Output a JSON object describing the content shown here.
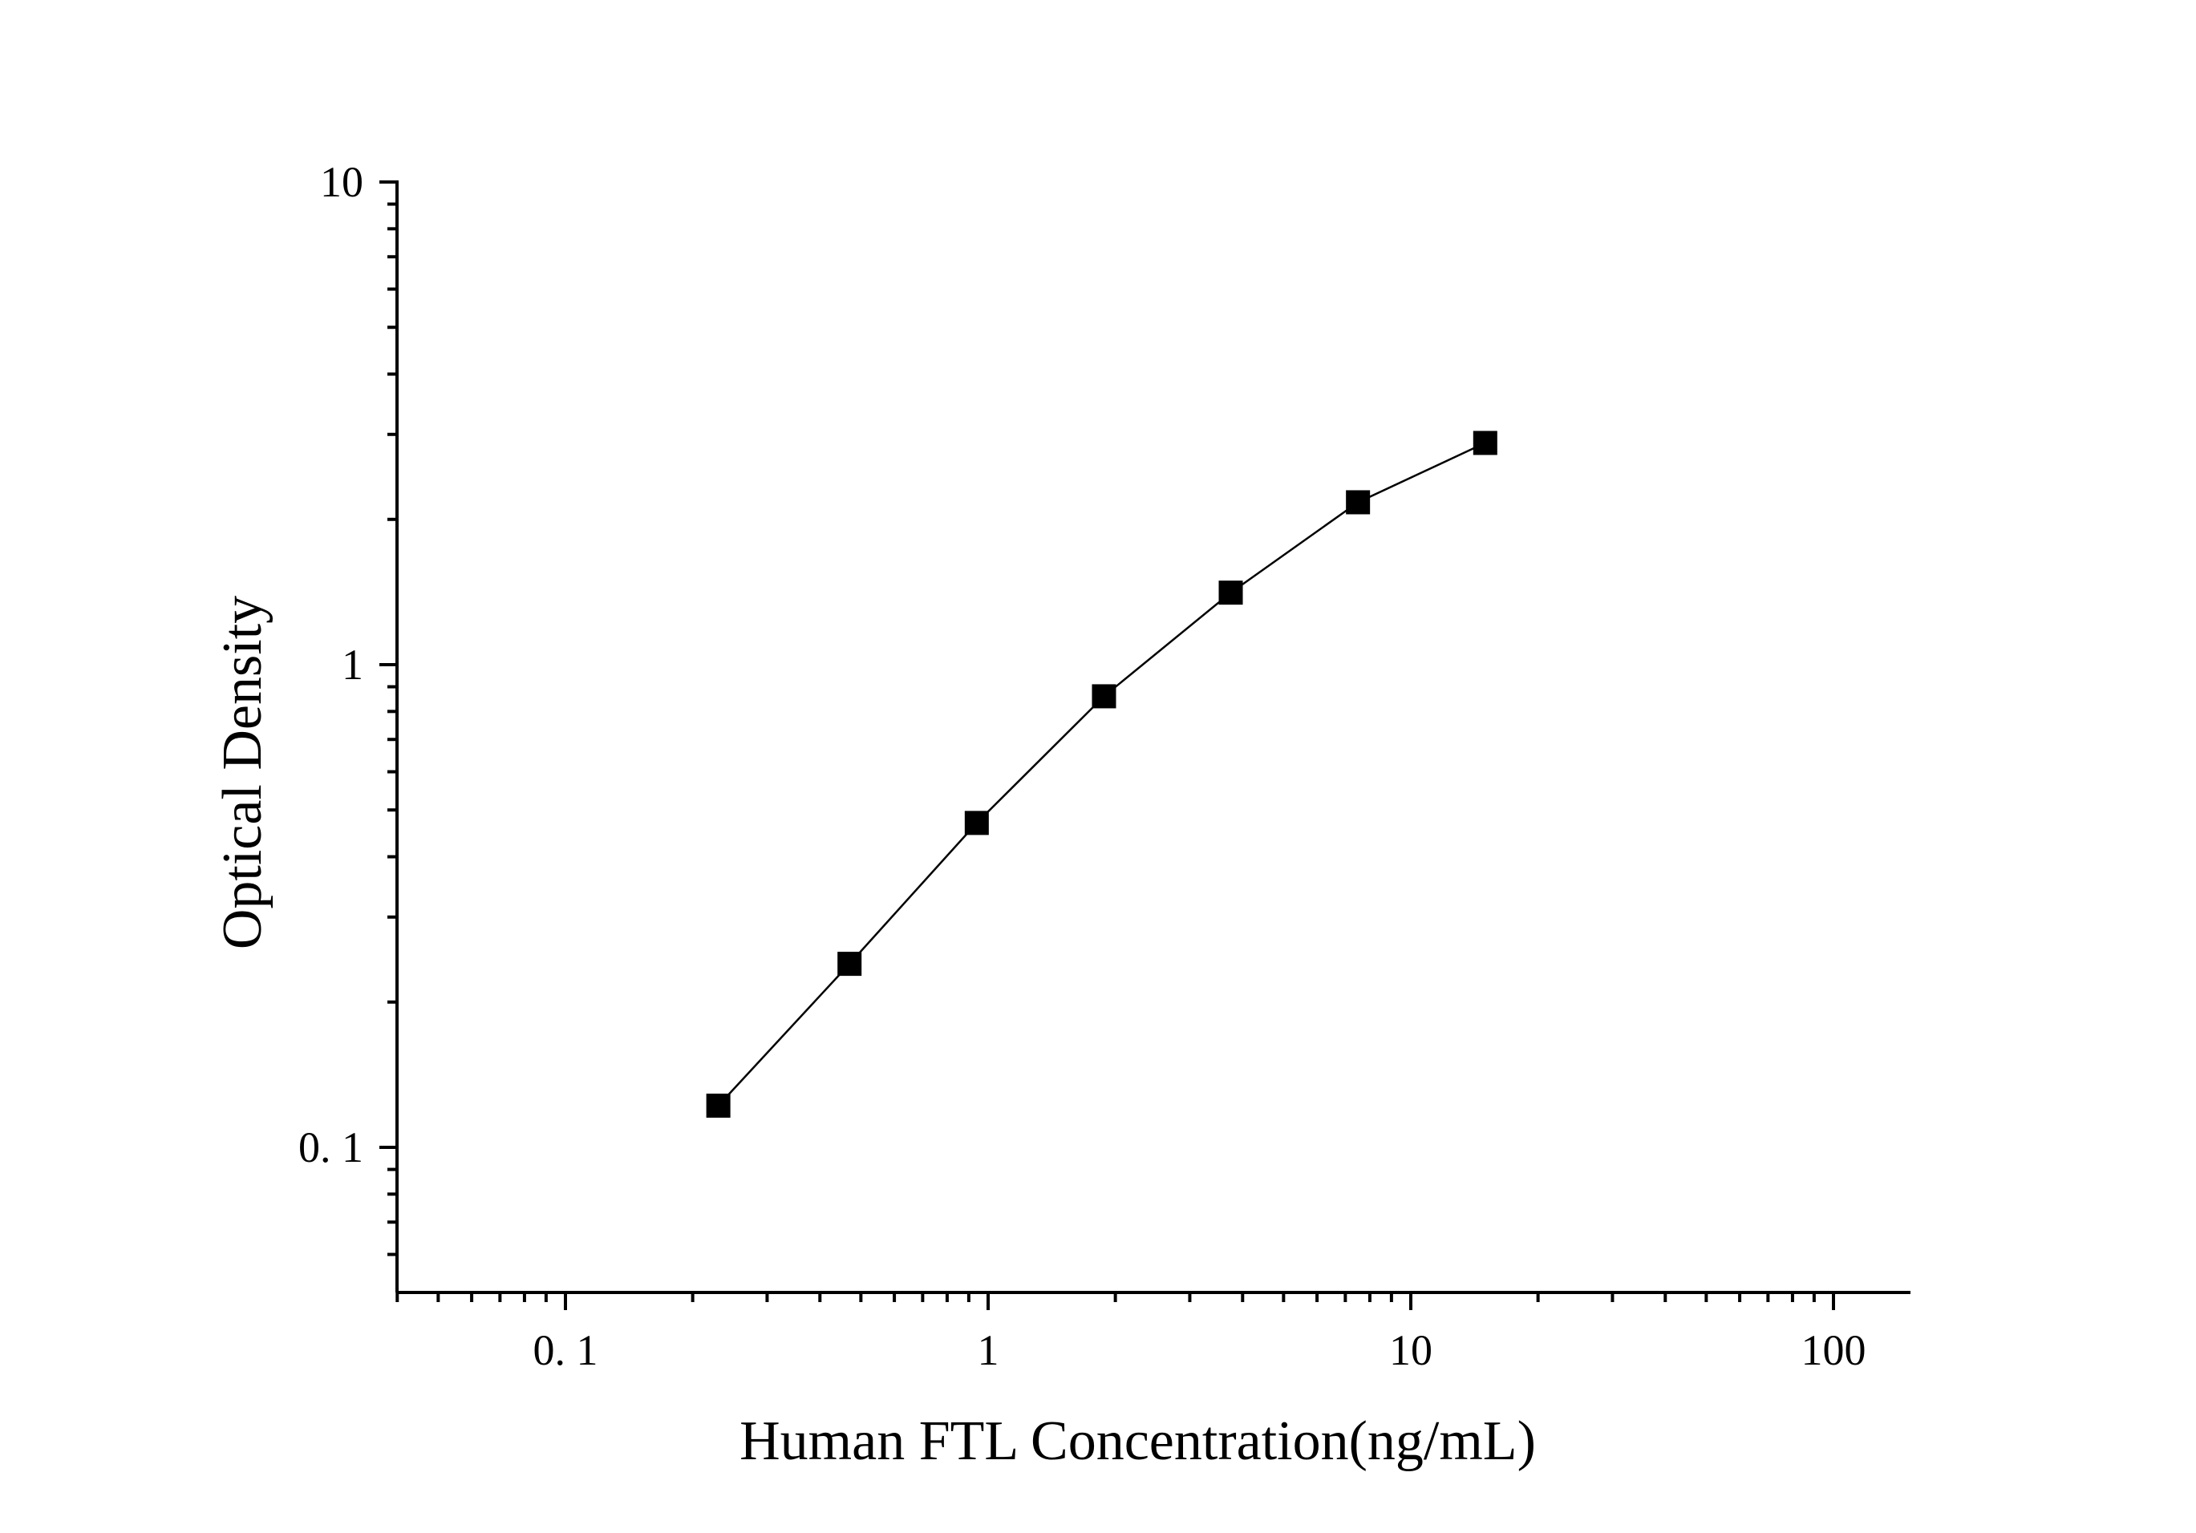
{
  "chart_data": {
    "type": "line",
    "title": "",
    "xlabel": "Human FTL Concentration(ng/mL)",
    "ylabel": "Optical Density",
    "x_scale": "log",
    "y_scale": "log",
    "xlim": [
      0.04,
      150
    ],
    "ylim": [
      0.05,
      10
    ],
    "x_major_ticks": [
      0.1,
      1,
      10,
      100
    ],
    "x_tick_labels": [
      "0. 1",
      "1",
      "10",
      "100"
    ],
    "y_major_ticks": [
      0.1,
      1,
      10
    ],
    "y_tick_labels": [
      "0. 1",
      "1",
      "10"
    ],
    "grid": false,
    "legend": "none",
    "series": [
      {
        "marker": "square",
        "color": "#000000",
        "x": [
          0.23,
          0.47,
          0.94,
          1.88,
          3.75,
          7.5,
          15
        ],
        "y": [
          0.122,
          0.24,
          0.47,
          0.86,
          1.41,
          2.17,
          2.88
        ]
      }
    ]
  }
}
